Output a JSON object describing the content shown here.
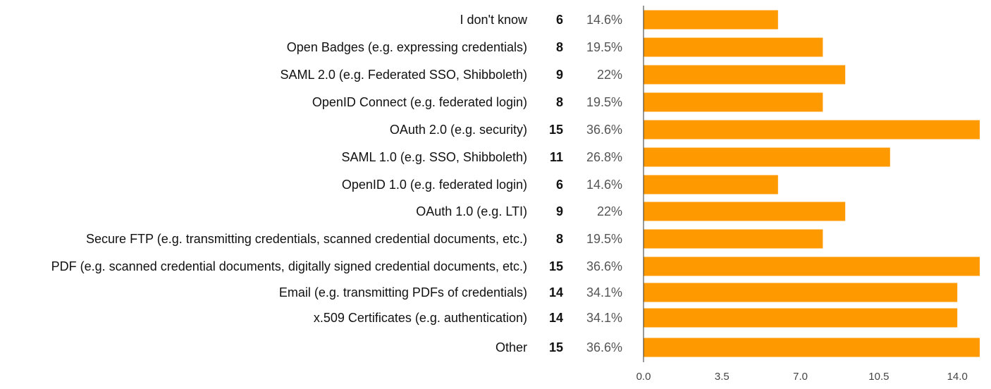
{
  "chart_data": {
    "type": "bar",
    "orientation": "horizontal",
    "categories": [
      "I don't know",
      "Open Badges (e.g. expressing credentials)",
      "SAML 2.0 (e.g. Federated SSO, Shibboleth)",
      "OpenID Connect (e.g. federated login)",
      "OAuth 2.0 (e.g. security)",
      "SAML 1.0 (e.g. SSO, Shibboleth)",
      "OpenID 1.0 (e.g. federated login)",
      "OAuth 1.0 (e.g. LTI)",
      "Secure FTP (e.g. transmitting credentials, scanned credential documents, etc.)",
      "PDF (e.g. scanned credential documents, digitally signed credential documents, etc.)",
      "Email (e.g. transmitting PDFs of credentials)",
      "x.509 Certificates (e.g. authentication)",
      "Other"
    ],
    "values": [
      6,
      8,
      9,
      8,
      15,
      11,
      6,
      9,
      8,
      15,
      14,
      14,
      15
    ],
    "percentages": [
      "14.6%",
      "19.5%",
      "22%",
      "19.5%",
      "36.6%",
      "26.8%",
      "14.6%",
      "22%",
      "19.5%",
      "36.6%",
      "34.1%",
      "34.1%",
      "36.6%"
    ],
    "xlim": [
      0,
      15
    ],
    "xticks": [
      "0.0",
      "3.5",
      "7.0",
      "10.5",
      "14.0"
    ],
    "xtick_values": [
      0,
      3.5,
      7,
      10.5,
      14
    ],
    "grid": false,
    "legend": "none",
    "bar_color": "#ff9900"
  }
}
